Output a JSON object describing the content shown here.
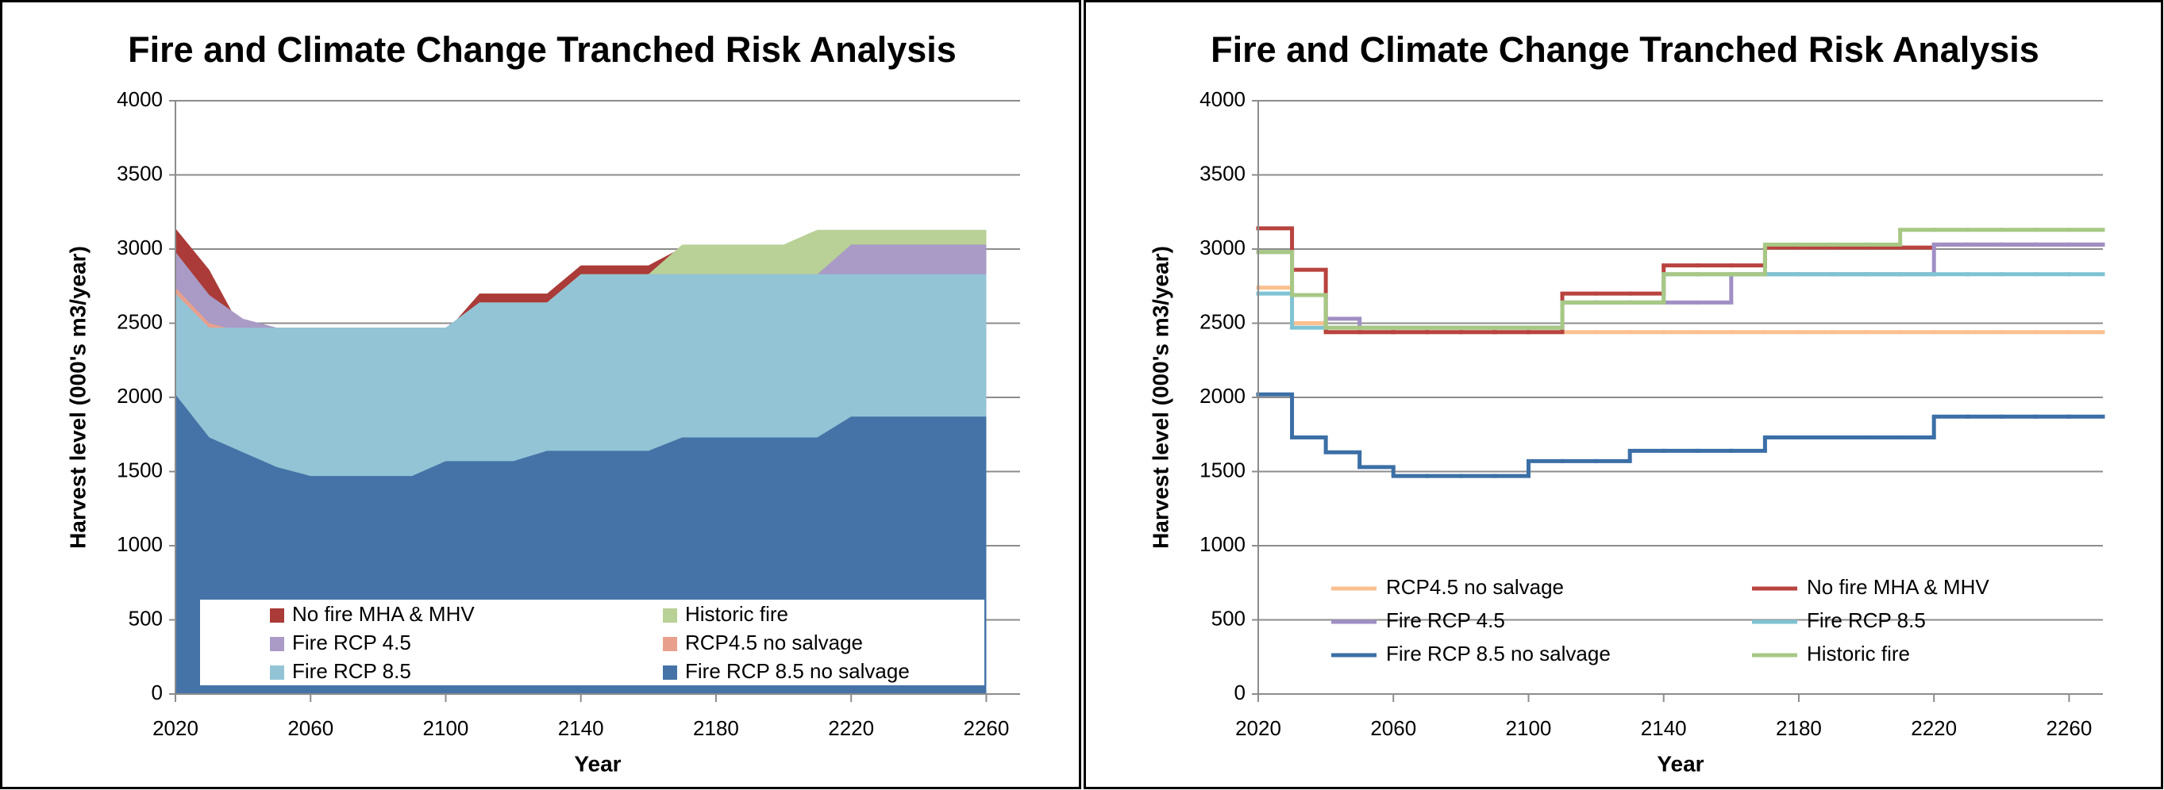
{
  "chart_data": [
    {
      "type": "area",
      "title": "Fire and Climate Change Tranched Risk Analysis",
      "x_label": "Year",
      "y_label": "Harvest level (000's m3/year)",
      "x": [
        2020,
        2030,
        2040,
        2050,
        2060,
        2070,
        2080,
        2090,
        2100,
        2110,
        2120,
        2130,
        2140,
        2150,
        2160,
        2170,
        2180,
        2190,
        2200,
        2210,
        2220,
        2230,
        2240,
        2250,
        2260
      ],
      "xlim": [
        2020,
        2270
      ],
      "xticks": [
        2020,
        2060,
        2100,
        2140,
        2180,
        2220,
        2260
      ],
      "ylim": [
        0,
        4000
      ],
      "yticks": [
        0,
        500,
        1000,
        1500,
        2000,
        2500,
        3000,
        3500,
        4000
      ],
      "grid": true,
      "series": [
        {
          "name": "No fire MHA & MHV",
          "color": "#aa3b38",
          "values": [
            3140,
            2860,
            2440,
            2440,
            2440,
            2440,
            2440,
            2440,
            2440,
            2700,
            2700,
            2700,
            2890,
            2890,
            2890,
            3010,
            3010,
            3010,
            3010,
            3010,
            3030,
            3030,
            3030,
            3030,
            3030
          ]
        },
        {
          "name": "Historic fire",
          "color": "#b9d096",
          "values": [
            2980,
            2690,
            2470,
            2470,
            2470,
            2470,
            2470,
            2470,
            2470,
            2640,
            2640,
            2640,
            2830,
            2830,
            2830,
            3030,
            3030,
            3030,
            3030,
            3130,
            3130,
            3130,
            3130,
            3130,
            3130
          ]
        },
        {
          "name": "Fire RCP 4.5",
          "color": "#a99ac6",
          "values": [
            2980,
            2690,
            2530,
            2470,
            2470,
            2470,
            2470,
            2470,
            2470,
            2640,
            2640,
            2640,
            2640,
            2640,
            2830,
            2830,
            2830,
            2830,
            2830,
            2830,
            3030,
            3030,
            3030,
            3030,
            3030
          ]
        },
        {
          "name": "RCP4.5 no salvage",
          "color": "#e8a08c",
          "values": [
            2740,
            2500,
            2440,
            2440,
            2440,
            2440,
            2440,
            2440,
            2440,
            2440,
            2440,
            2440,
            2440,
            2440,
            2440,
            2440,
            2440,
            2440,
            2440,
            2440,
            2440,
            2440,
            2440,
            2440,
            2440
          ]
        },
        {
          "name": "Fire RCP 8.5",
          "color": "#93c4d5",
          "values": [
            2700,
            2470,
            2470,
            2470,
            2470,
            2470,
            2470,
            2470,
            2470,
            2640,
            2640,
            2640,
            2830,
            2830,
            2830,
            2830,
            2830,
            2830,
            2830,
            2830,
            2830,
            2830,
            2830,
            2830,
            2830
          ]
        },
        {
          "name": "Fire RCP 8.5 no salvage",
          "color": "#4573a7",
          "values": [
            2020,
            1730,
            1630,
            1530,
            1470,
            1470,
            1470,
            1470,
            1570,
            1570,
            1570,
            1640,
            1640,
            1640,
            1640,
            1730,
            1730,
            1730,
            1730,
            1730,
            1870,
            1870,
            1870,
            1870,
            1870
          ]
        }
      ]
    },
    {
      "type": "step",
      "title": "Fire and Climate Change Tranched Risk Analysis",
      "x_label": "Year",
      "y_label": "Harvest level (000's m3/year)",
      "x": [
        2020,
        2030,
        2040,
        2050,
        2060,
        2070,
        2080,
        2090,
        2100,
        2110,
        2120,
        2130,
        2140,
        2150,
        2160,
        2170,
        2180,
        2190,
        2200,
        2210,
        2220,
        2230,
        2240,
        2250,
        2260
      ],
      "xlim": [
        2020,
        2270
      ],
      "xticks": [
        2020,
        2060,
        2100,
        2140,
        2180,
        2220,
        2260
      ],
      "ylim": [
        0,
        4000
      ],
      "yticks": [
        0,
        500,
        1000,
        1500,
        2000,
        2500,
        3000,
        3500,
        4000
      ],
      "grid": true,
      "series": [
        {
          "name": "RCP4.5 no salvage",
          "color": "#fac090",
          "values": [
            2740,
            2500,
            2440,
            2440,
            2440,
            2440,
            2440,
            2440,
            2440,
            2440,
            2440,
            2440,
            2440,
            2440,
            2440,
            2440,
            2440,
            2440,
            2440,
            2440,
            2440,
            2440,
            2440,
            2440,
            2440
          ]
        },
        {
          "name": "No fire MHA & MHV",
          "color": "#b8433f",
          "values": [
            3140,
            2860,
            2440,
            2440,
            2440,
            2440,
            2440,
            2440,
            2440,
            2700,
            2700,
            2700,
            2890,
            2890,
            2890,
            3010,
            3010,
            3010,
            3010,
            3010,
            3030,
            3030,
            3030,
            3030,
            3030
          ]
        },
        {
          "name": "Fire RCP 4.5",
          "color": "#a08fc4",
          "values": [
            2980,
            2690,
            2530,
            2470,
            2470,
            2470,
            2470,
            2470,
            2470,
            2640,
            2640,
            2640,
            2640,
            2640,
            2830,
            2830,
            2830,
            2830,
            2830,
            2830,
            3030,
            3030,
            3030,
            3030,
            3030
          ]
        },
        {
          "name": "Fire RCP 8.5",
          "color": "#7fc3d3",
          "values": [
            2700,
            2470,
            2470,
            2470,
            2470,
            2470,
            2470,
            2470,
            2470,
            2640,
            2640,
            2640,
            2830,
            2830,
            2830,
            2830,
            2830,
            2830,
            2830,
            2830,
            2830,
            2830,
            2830,
            2830,
            2830
          ]
        },
        {
          "name": "Fire RCP 8.5 no salvage",
          "color": "#3b6fa6",
          "values": [
            2020,
            1730,
            1630,
            1530,
            1470,
            1470,
            1470,
            1470,
            1570,
            1570,
            1570,
            1640,
            1640,
            1640,
            1640,
            1730,
            1730,
            1730,
            1730,
            1730,
            1870,
            1870,
            1870,
            1870,
            1870
          ]
        },
        {
          "name": "Historic fire",
          "color": "#a7c884",
          "values": [
            2980,
            2690,
            2470,
            2470,
            2470,
            2470,
            2470,
            2470,
            2470,
            2640,
            2640,
            2640,
            2830,
            2830,
            2830,
            3030,
            3030,
            3030,
            3030,
            3130,
            3130,
            3130,
            3130,
            3130,
            3130
          ]
        }
      ]
    }
  ]
}
